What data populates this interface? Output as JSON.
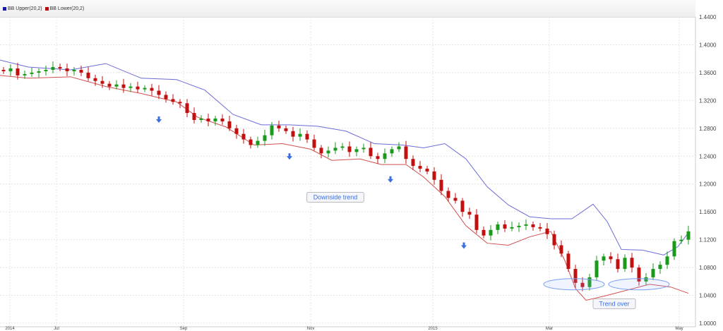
{
  "chart_data": {
    "type": "candlestick",
    "legend": [
      {
        "name": "BB Upper(20,2)",
        "color": "#1a1aa0"
      },
      {
        "name": "BB Lower(20,2)",
        "color": "#b01010"
      }
    ],
    "legend_placement": "top-left",
    "y_ticks": [
      "1.4400",
      "1.4000",
      "1.3600",
      "1.3200",
      "1.2800",
      "1.2400",
      "1.2000",
      "1.1600",
      "1.1200",
      "1.0800",
      "1.0400",
      "1.0000"
    ],
    "ylim": [
      1.0,
      1.44
    ],
    "x_ticks": [
      {
        "label": "2014",
        "index": 0.9
      },
      {
        "label": "Jul",
        "index": 7.5
      },
      {
        "label": "Sep",
        "index": 25.5
      },
      {
        "label": "Nov",
        "index": 43.5
      },
      {
        "label": "2015",
        "index": 60.8
      },
      {
        "label": "Mar",
        "index": 77.3
      },
      {
        "label": "May",
        "index": 95.7
      }
    ],
    "grid": true,
    "colors": {
      "up": "#1a9a1a",
      "down": "#c01010",
      "upper_band": "#6b6bd8",
      "lower_band": "#d05050",
      "annotation": "#3a6fe0"
    },
    "closes": [
      1.362,
      1.366,
      1.356,
      1.358,
      1.36,
      1.362,
      1.364,
      1.368,
      1.366,
      1.362,
      1.364,
      1.36,
      1.352,
      1.348,
      1.344,
      1.34,
      1.343,
      1.338,
      1.34,
      1.336,
      1.338,
      1.334,
      1.328,
      1.322,
      1.318,
      1.316,
      1.302,
      1.292,
      1.294,
      1.29,
      1.294,
      1.29,
      1.28,
      1.272,
      1.264,
      1.256,
      1.262,
      1.27,
      1.284,
      1.28,
      1.276,
      1.268,
      1.272,
      1.264,
      1.252,
      1.244,
      1.248,
      1.252,
      1.254,
      1.246,
      1.25,
      1.252,
      1.24,
      1.236,
      1.244,
      1.25,
      1.254,
      1.236,
      1.226,
      1.222,
      1.218,
      1.206,
      1.19,
      1.18,
      1.176,
      1.16,
      1.156,
      1.134,
      1.126,
      1.134,
      1.142,
      1.136,
      1.138,
      1.14,
      1.142,
      1.138,
      1.136,
      1.128,
      1.112,
      1.1,
      1.078,
      1.058,
      1.052,
      1.066,
      1.09,
      1.096,
      1.092,
      1.078,
      1.094,
      1.08,
      1.06,
      1.066,
      1.078,
      1.084,
      1.096,
      1.118,
      1.12,
      1.132
    ],
    "upper_band": [
      [
        -0.5,
        1.378
      ],
      [
        3.5,
        1.368
      ],
      [
        9.5,
        1.364
      ],
      [
        14.5,
        1.373
      ],
      [
        19.5,
        1.352
      ],
      [
        24.5,
        1.35
      ],
      [
        28.5,
        1.335
      ],
      [
        32.5,
        1.3
      ],
      [
        36.5,
        1.285
      ],
      [
        40.5,
        1.285
      ],
      [
        44.5,
        1.283
      ],
      [
        48.5,
        1.276
      ],
      [
        52.5,
        1.258
      ],
      [
        56.5,
        1.256
      ],
      [
        59.5,
        1.252
      ],
      [
        62.5,
        1.258
      ],
      [
        65.5,
        1.236
      ],
      [
        68.5,
        1.196
      ],
      [
        71.5,
        1.17
      ],
      [
        74.5,
        1.153
      ],
      [
        77.5,
        1.15
      ],
      [
        80.5,
        1.15
      ],
      [
        83.5,
        1.171
      ],
      [
        85.5,
        1.146
      ],
      [
        87.5,
        1.106
      ],
      [
        90.5,
        1.105
      ],
      [
        93.5,
        1.098
      ],
      [
        95.5,
        1.11
      ],
      [
        97,
        1.13
      ]
    ],
    "lower_band": [
      [
        -0.5,
        1.356
      ],
      [
        3.5,
        1.352
      ],
      [
        9.5,
        1.354
      ],
      [
        14.5,
        1.34
      ],
      [
        19.5,
        1.33
      ],
      [
        24.5,
        1.318
      ],
      [
        27.5,
        1.296
      ],
      [
        31.5,
        1.282
      ],
      [
        35.5,
        1.256
      ],
      [
        39.5,
        1.258
      ],
      [
        43.5,
        1.25
      ],
      [
        46.5,
        1.234
      ],
      [
        50.5,
        1.236
      ],
      [
        53.5,
        1.228
      ],
      [
        57,
        1.228
      ],
      [
        59.5,
        1.21
      ],
      [
        62.5,
        1.182
      ],
      [
        65.5,
        1.14
      ],
      [
        68.5,
        1.115
      ],
      [
        71.5,
        1.112
      ],
      [
        74.5,
        1.124
      ],
      [
        77.5,
        1.132
      ],
      [
        79.5,
        1.09
      ],
      [
        81,
        1.05
      ],
      [
        82.5,
        1.033
      ],
      [
        85.5,
        1.04
      ],
      [
        88.5,
        1.048
      ],
      [
        91.5,
        1.056
      ],
      [
        94.5,
        1.052
      ],
      [
        97,
        1.043
      ]
    ],
    "annotations": {
      "arrows": [
        {
          "index": 22,
          "value": 1.292
        },
        {
          "index": 40.5,
          "value": 1.239
        },
        {
          "index": 54.8,
          "value": 1.206
        },
        {
          "index": 65.2,
          "value": 1.111
        }
      ],
      "labels": [
        {
          "text": "Downside trend",
          "index": 47,
          "value": 1.181
        },
        {
          "text": "Trend over",
          "index": 86.5,
          "value": 1.028
        }
      ],
      "ellipses": [
        {
          "index": 80.8,
          "value": 1.056
        },
        {
          "index": 90,
          "value": 1.056
        }
      ]
    }
  }
}
